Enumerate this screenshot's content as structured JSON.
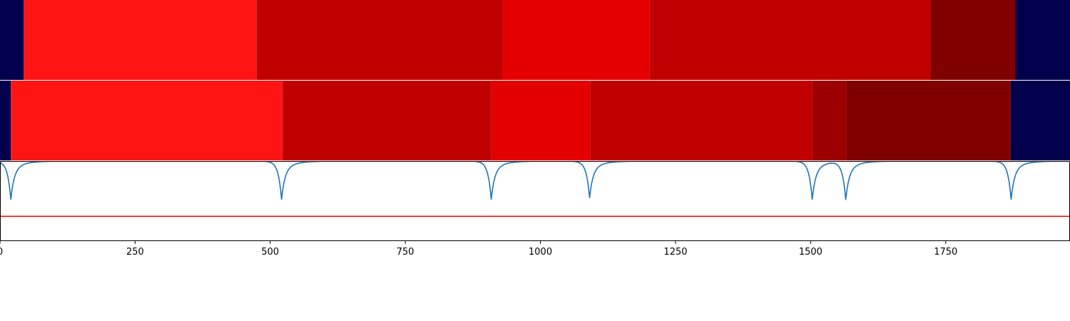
{
  "chart_data": [
    {
      "type": "heatmap",
      "title": "",
      "xlim": [
        0,
        1980
      ],
      "segments": [
        {
          "start": 0,
          "end": 44,
          "color": "#00004c"
        },
        {
          "start": 44,
          "end": 475,
          "color": "#ff1414"
        },
        {
          "start": 475,
          "end": 930,
          "color": "#c00000"
        },
        {
          "start": 930,
          "end": 1202,
          "color": "#e40000"
        },
        {
          "start": 1202,
          "end": 1722,
          "color": "#c00000"
        },
        {
          "start": 1722,
          "end": 1879,
          "color": "#800000"
        },
        {
          "start": 1879,
          "end": 1980,
          "color": "#00004c"
        }
      ]
    },
    {
      "type": "heatmap",
      "title": "",
      "xlim": [
        0,
        1980
      ],
      "segments": [
        {
          "start": 0,
          "end": 20,
          "color": "#00004c"
        },
        {
          "start": 20,
          "end": 523,
          "color": "#ff1414"
        },
        {
          "start": 523,
          "end": 909,
          "color": "#c00000"
        },
        {
          "start": 909,
          "end": 1092,
          "color": "#e40000"
        },
        {
          "start": 1092,
          "end": 1504,
          "color": "#c00000"
        },
        {
          "start": 1504,
          "end": 1566,
          "color": "#9c0000"
        },
        {
          "start": 1566,
          "end": 1870,
          "color": "#800000"
        },
        {
          "start": 1870,
          "end": 1980,
          "color": "#00004c"
        }
      ]
    },
    {
      "type": "line",
      "title": "",
      "xlabel": "",
      "ylabel": "",
      "xlim": [
        0,
        1980
      ],
      "ylim": [
        0,
        1
      ],
      "xticks": [
        0,
        250,
        500,
        750,
        1000,
        1250,
        1500,
        1750
      ],
      "grid": false,
      "line_color": "#1f77b4",
      "dips": [
        {
          "x": 20,
          "depth": 0.48
        },
        {
          "x": 521,
          "depth": 0.48
        },
        {
          "x": 909,
          "depth": 0.48
        },
        {
          "x": 1091,
          "depth": 0.46
        },
        {
          "x": 1503,
          "depth": 0.48
        },
        {
          "x": 1565,
          "depth": 0.48
        },
        {
          "x": 1871,
          "depth": 0.48
        }
      ],
      "threshold": {
        "y": 0.31,
        "color": "#ff0000"
      }
    }
  ]
}
